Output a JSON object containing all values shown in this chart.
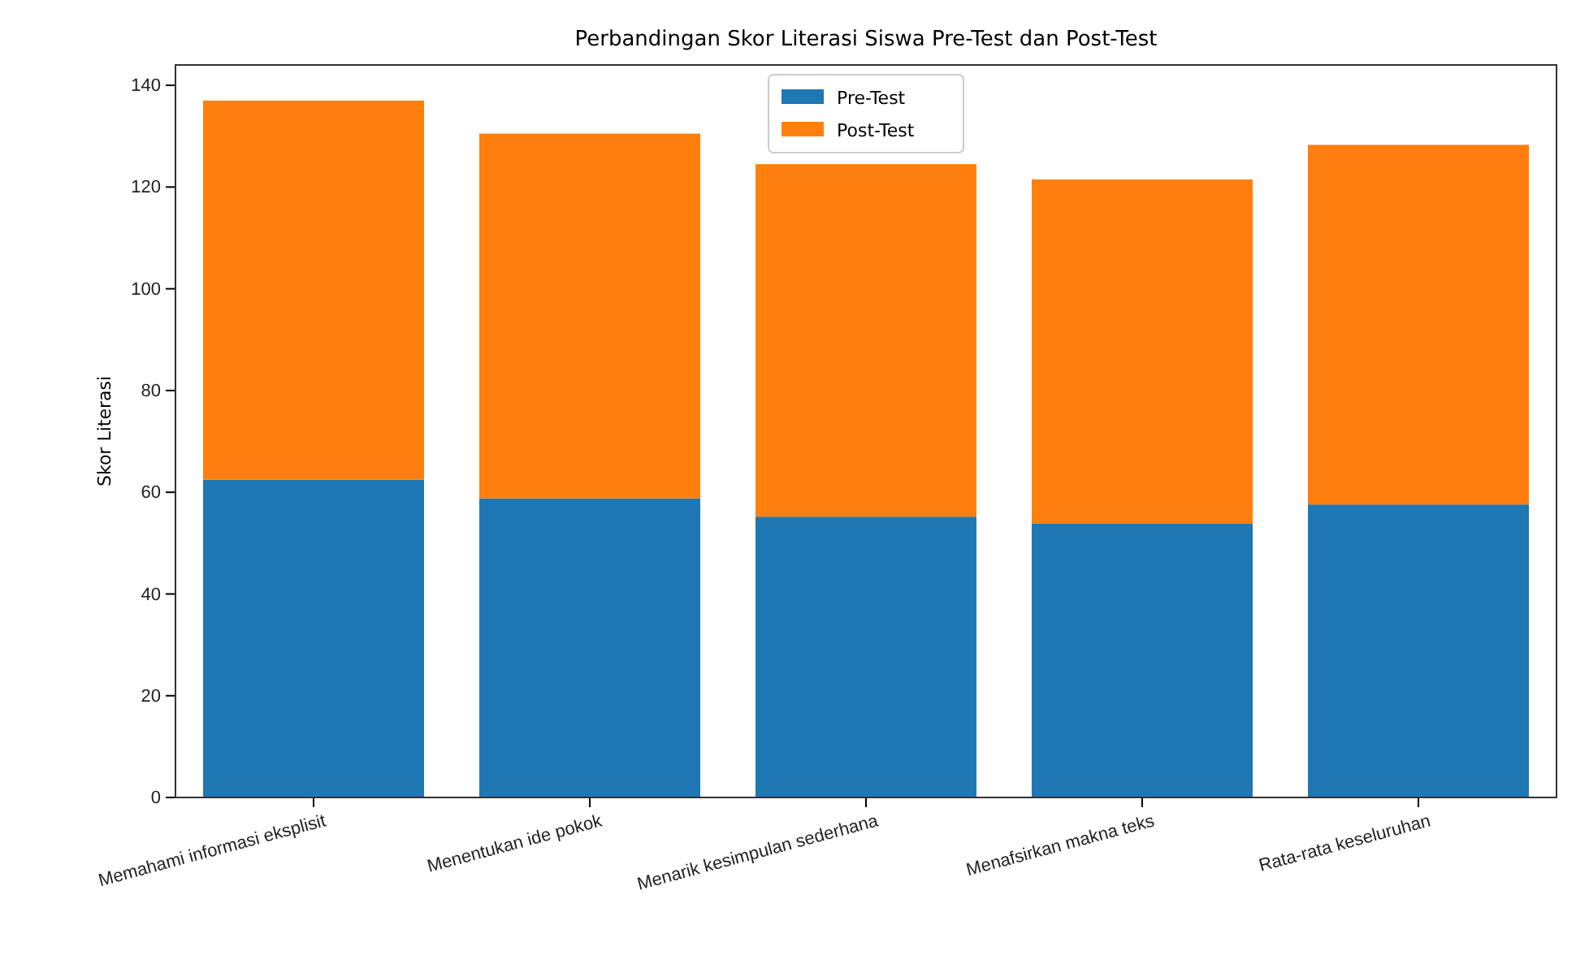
{
  "chart_data": {
    "type": "bar",
    "title": "Perbandingan Skor Literasi Siswa Pre-Test dan Post-Test",
    "ylabel": "Skor Literasi",
    "categories": [
      "Memahami informasi eksplisit",
      "Menentukan ide pokok",
      "Menarik kesimpulan sederhana",
      "Menafsirkan makna teks",
      "Rata-rata keseluruhan"
    ],
    "series": [
      {
        "name": "Pre-Test",
        "color": "#1f77b4",
        "values": [
          62.5,
          58.8,
          55.2,
          53.8,
          57.6
        ]
      },
      {
        "name": "Post-Test",
        "color": "#ff7f0e",
        "values": [
          74.5,
          71.7,
          69.3,
          67.7,
          70.7
        ]
      }
    ],
    "stacked": true,
    "ylim": [
      0,
      144
    ],
    "yticks": [
      0,
      20,
      40,
      60,
      80,
      100,
      120,
      140
    ],
    "legend": "top",
    "grid": false
  }
}
